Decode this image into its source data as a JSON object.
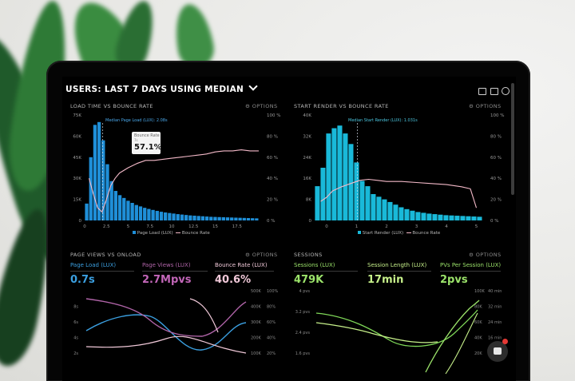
{
  "dashboard": {
    "title_prefix": "USERS:",
    "title_main": "LAST 7 DAYS USING MEDIAN",
    "options_label": "OPTIONS"
  },
  "panels": {
    "load_time": {
      "title": "LOAD TIME VS BOUNCE RATE",
      "marker_label": "Median Page Load (LUX): 2.08s",
      "tooltip_label": "Bounce Rate",
      "tooltip_sub": "7s",
      "tooltip_value": "57.1%",
      "legend": [
        "Page Load (LUX)",
        "Bounce Rate"
      ]
    },
    "start_render": {
      "title": "START RENDER VS BOUNCE RATE",
      "marker_label": "Median Start Render (LUX): 1.031s",
      "legend": [
        "Start Render (LUX)",
        "Bounce Rate"
      ]
    },
    "page_views": {
      "title": "PAGE VIEWS VS ONLOAD",
      "metrics": [
        {
          "label": "Page Load (LUX)",
          "value": "0.7s",
          "color": "#3b9fe0"
        },
        {
          "label": "Page Views (LUX)",
          "value": "2.7Mpvs",
          "color": "#c266b8"
        },
        {
          "label": "Bounce Rate (LUX)",
          "value": "40.6%",
          "color": "#f0c8d8"
        }
      ],
      "left_ticks": [
        "",
        "8s",
        "6s",
        "4s",
        "2s"
      ],
      "right_ticks_a": [
        "500K",
        "400K",
        "300K",
        "200K",
        "100K"
      ],
      "right_ticks_b": [
        "100%",
        "80%",
        "60%",
        "40%",
        "20%"
      ]
    },
    "sessions": {
      "title": "SESSIONS",
      "metrics": [
        {
          "label": "Sessions (LUX)",
          "value": "479K",
          "color": "#9be36a"
        },
        {
          "label": "Session Length (LUX)",
          "value": "17min",
          "color": "#c6f08a"
        },
        {
          "label": "PVs Per Session (LUX)",
          "value": "2pvs",
          "color": "#9be36a"
        }
      ],
      "left_ticks": [
        "4 pvs",
        "3.2 pvs",
        "2.4 pvs",
        "1.6 pvs"
      ],
      "right_ticks_a": [
        "100K",
        "80K",
        "60K",
        "40K",
        "20K"
      ],
      "right_ticks_b": [
        "40 min",
        "32 min",
        "24 min",
        "16 min",
        "8 min"
      ]
    }
  },
  "colors": {
    "bar_blue": "#1f8fd8",
    "bar_cyan": "#19b9d9",
    "bounce_pink": "#f3b9c8",
    "accent_green": "#9be36a",
    "badge_red": "#e53935"
  },
  "chart_data": [
    {
      "type": "bar",
      "title": "LOAD TIME VS BOUNCE RATE",
      "x_ticks": [
        "0",
        "2.5",
        "5",
        "7.5",
        "10",
        "12.5",
        "15",
        "17.5"
      ],
      "y_ticks": [
        "75K",
        "60K",
        "45K",
        "30K",
        "15K",
        "0"
      ],
      "y2_ticks": [
        "100 %",
        "80 %",
        "60 %",
        "40 %",
        "20 %",
        "0 %"
      ],
      "ylim": [
        0,
        75000
      ],
      "y2lim": [
        0,
        100
      ],
      "xlim": [
        0,
        20
      ],
      "series": [
        {
          "name": "Page Load (LUX)",
          "values": [
            12000,
            45000,
            68000,
            70000,
            57000,
            40000,
            28000,
            21000,
            18000,
            16000,
            14000,
            12500,
            11000,
            10000,
            9000,
            8200,
            7500,
            6800,
            6200,
            5700,
            5300,
            4900,
            4500,
            4200,
            3900,
            3600,
            3400,
            3200,
            3000,
            2800,
            2600,
            2500,
            2400,
            2300,
            2200,
            2100,
            2000,
            1900,
            1800,
            1700,
            1600,
            1500
          ]
        },
        {
          "name": "Bounce Rate",
          "x": [
            0.5,
            1,
            1.5,
            2,
            2.5,
            3,
            3.5,
            4,
            5,
            6,
            7,
            8,
            9,
            10,
            11,
            12,
            13,
            14,
            15,
            16,
            17,
            18,
            19,
            20
          ],
          "values": [
            40,
            25,
            12,
            8,
            20,
            33,
            40,
            45,
            50,
            54,
            57,
            57,
            58,
            59,
            60,
            61,
            62,
            63,
            65,
            66,
            66,
            67,
            66,
            66
          ]
        }
      ],
      "marker": {
        "x": 2.08
      }
    },
    {
      "type": "bar",
      "title": "START RENDER VS BOUNCE RATE",
      "x_ticks": [
        "0",
        "1",
        "2",
        "3",
        "4",
        "5"
      ],
      "y_ticks": [
        "40K",
        "32K",
        "24K",
        "16K",
        "8K",
        "0"
      ],
      "y2_ticks": [
        "100 %",
        "80 %",
        "60 %",
        "40 %",
        "20 %",
        "0 %"
      ],
      "ylim": [
        0,
        40000
      ],
      "y2lim": [
        0,
        100
      ],
      "xlim": [
        -0.4,
        5.2
      ],
      "series": [
        {
          "name": "Start Render (LUX)",
          "values": [
            13000,
            20000,
            33000,
            35000,
            36000,
            33000,
            29000,
            22000,
            15000,
            13000,
            10000,
            9000,
            8000,
            7000,
            6000,
            5000,
            4300,
            3700,
            3200,
            2900,
            2600,
            2400,
            2200,
            2000,
            1900,
            1800,
            1700,
            1600,
            1500,
            1400
          ]
        },
        {
          "name": "Bounce Rate",
          "x": [
            -0.2,
            0,
            0.2,
            0.5,
            0.8,
            1.1,
            1.4,
            1.7,
            2,
            2.5,
            3,
            3.5,
            4,
            4.5,
            4.8,
            5.0
          ],
          "values": [
            18,
            22,
            28,
            32,
            35,
            38,
            39,
            38,
            37,
            37,
            36,
            35,
            34,
            32,
            30,
            12
          ]
        }
      ],
      "marker": {
        "x": 1.031
      }
    }
  ]
}
